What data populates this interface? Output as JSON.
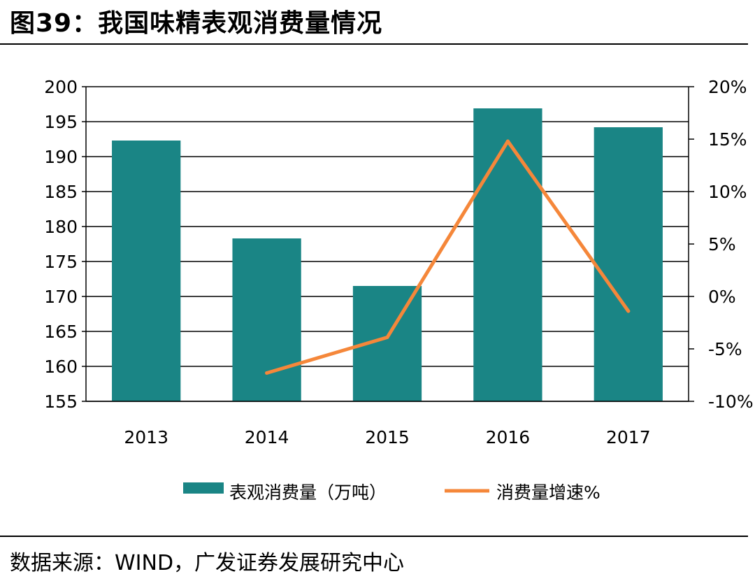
{
  "header": {
    "title": "图39：我国味精表观消费量情况"
  },
  "footer": {
    "source": "数据来源：WIND，广发证券发展研究中心"
  },
  "chart_data": {
    "type": "bar+line",
    "categories": [
      "2013",
      "2014",
      "2015",
      "2016",
      "2017"
    ],
    "series": [
      {
        "name": "表观消费量（万吨）",
        "type": "bar",
        "axis": "left",
        "values": [
          192.3,
          178.3,
          171.5,
          196.9,
          194.2
        ],
        "color": "#1a8585"
      },
      {
        "name": "消费量增速%",
        "type": "line",
        "axis": "right",
        "values": [
          null,
          -7.3,
          -3.9,
          14.8,
          -1.4
        ],
        "color": "#f5873a"
      }
    ],
    "y_left": {
      "ylim": [
        155,
        200
      ],
      "ticks": [
        "155",
        "160",
        "165",
        "170",
        "175",
        "180",
        "185",
        "190",
        "195",
        "200"
      ]
    },
    "y_right": {
      "ylim": [
        -10,
        20
      ],
      "ticks": [
        "-10%",
        "-5%",
        "0%",
        "5%",
        "10%",
        "15%",
        "20%"
      ]
    },
    "grid": true,
    "legend_position": "bottom"
  }
}
